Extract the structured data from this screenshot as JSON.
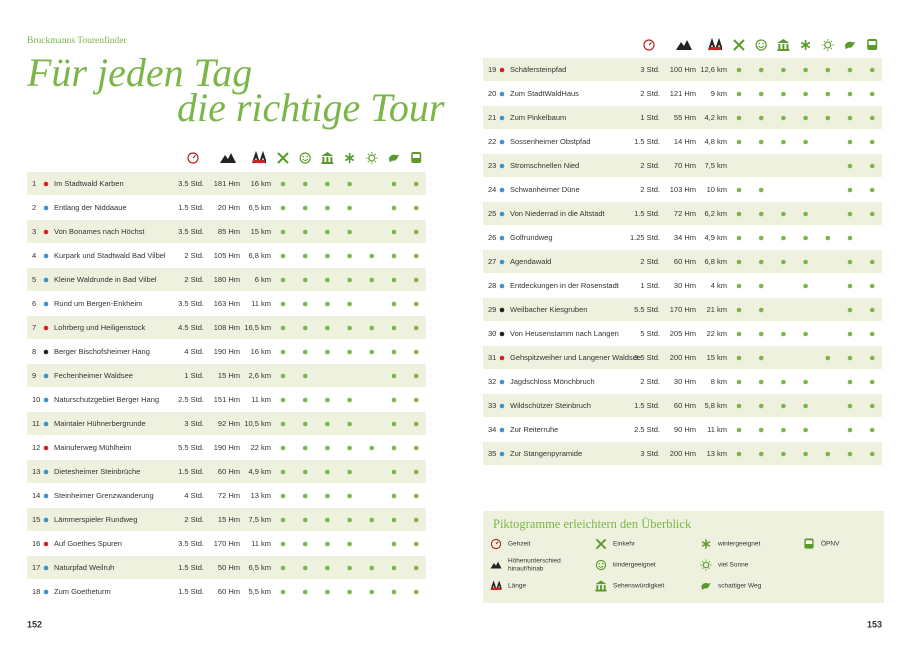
{
  "header": {
    "series": "Bruckmanns Tourenfinder",
    "title_line1": "Für jeden Tag",
    "title_line2": "die richtige Tour"
  },
  "page_left": "152",
  "page_right": "153",
  "tours": [
    {
      "number": "1",
      "name": "Im Stadtwald Karben",
      "time": "3.5 Std.",
      "ascent": "181 Hm",
      "length": "16 km",
      "marker": "#d2232a",
      "features": [
        1,
        1,
        1,
        1,
        0,
        1,
        1
      ]
    },
    {
      "number": "2",
      "name": "Entlang der Niddaaue",
      "time": "1.5 Std.",
      "ascent": "20 Hm",
      "length": "6,5 km",
      "marker": "#3f8fd2",
      "features": [
        1,
        1,
        1,
        1,
        0,
        1,
        1
      ]
    },
    {
      "number": "3",
      "name": "Von Bonames nach Höchst",
      "time": "3.5 Std.",
      "ascent": "85 Hm",
      "length": "15 km",
      "marker": "#d2232a",
      "features": [
        1,
        1,
        1,
        1,
        0,
        1,
        1
      ]
    },
    {
      "number": "4",
      "name": "Kurpark und Stadtwald Bad Vilbel",
      "time": "2 Std.",
      "ascent": "105 Hm",
      "length": "6,8 km",
      "marker": "#3f8fd2",
      "features": [
        1,
        1,
        1,
        1,
        1,
        1,
        1
      ]
    },
    {
      "number": "5",
      "name": "Kleine Waldrunde in Bad Vilbel",
      "time": "2 Std.",
      "ascent": "180 Hm",
      "length": "6 km",
      "marker": "#3f8fd2",
      "features": [
        1,
        1,
        1,
        1,
        1,
        1,
        1
      ]
    },
    {
      "number": "6",
      "name": "Rund um Bergen-Enkheim",
      "time": "3.5 Std.",
      "ascent": "163 Hm",
      "length": "11 km",
      "marker": "#3f8fd2",
      "features": [
        1,
        1,
        1,
        1,
        0,
        1,
        1
      ]
    },
    {
      "number": "7",
      "name": "Lohrberg und Heiligenstock",
      "time": "4.5 Std.",
      "ascent": "108 Hm",
      "length": "16,5 km",
      "marker": "#d2232a",
      "features": [
        1,
        1,
        1,
        1,
        1,
        1,
        1
      ]
    },
    {
      "number": "8",
      "name": "Berger Bischofsheimer Hang",
      "time": "4 Std.",
      "ascent": "190 Hm",
      "length": "16 km",
      "marker": "#222222",
      "features": [
        1,
        1,
        1,
        1,
        1,
        1,
        1
      ]
    },
    {
      "number": "9",
      "name": "Fechenheimer Waldsee",
      "time": "1 Std.",
      "ascent": "15 Hm",
      "length": "2,6 km",
      "marker": "#3f8fd2",
      "features": [
        1,
        1,
        0,
        0,
        0,
        1,
        1
      ]
    },
    {
      "number": "10",
      "name": "Naturschutzgebiet Berger Hang",
      "time": "2.5 Std.",
      "ascent": "151 Hm",
      "length": "11 km",
      "marker": "#3f8fd2",
      "features": [
        1,
        1,
        1,
        1,
        0,
        1,
        1
      ]
    },
    {
      "number": "11",
      "name": "Maintaler Hühnerbergrunde",
      "time": "3 Std.",
      "ascent": "92 Hm",
      "length": "10,5 km",
      "marker": "#3f8fd2",
      "features": [
        1,
        1,
        1,
        1,
        0,
        1,
        1
      ]
    },
    {
      "number": "12",
      "name": "Mainuferweg Mühlheim",
      "time": "5.5 Std.",
      "ascent": "190 Hm",
      "length": "22 km",
      "marker": "#d2232a",
      "features": [
        1,
        1,
        1,
        1,
        1,
        1,
        1
      ]
    },
    {
      "number": "13",
      "name": "Dietesheimer Steinbrüche",
      "time": "1.5 Std.",
      "ascent": "60 Hm",
      "length": "4,9 km",
      "marker": "#3f8fd2",
      "features": [
        1,
        1,
        1,
        1,
        0,
        1,
        1
      ]
    },
    {
      "number": "14",
      "name": "Steinheimer Grenzwanderung",
      "time": "4 Std.",
      "ascent": "72 Hm",
      "length": "13 km",
      "marker": "#3f8fd2",
      "features": [
        1,
        1,
        1,
        1,
        0,
        1,
        1
      ]
    },
    {
      "number": "15",
      "name": "Lämmerspieler Rundweg",
      "time": "2 Std.",
      "ascent": "15 Hm",
      "length": "7,5 km",
      "marker": "#3f8fd2",
      "features": [
        1,
        1,
        1,
        1,
        1,
        1,
        1
      ]
    },
    {
      "number": "16",
      "name": "Auf Goethes Spuren",
      "time": "3.5 Std.",
      "ascent": "170 Hm",
      "length": "11 km",
      "marker": "#d2232a",
      "features": [
        1,
        1,
        1,
        1,
        0,
        1,
        1
      ]
    },
    {
      "number": "17",
      "name": "Naturpfad Weilruh",
      "time": "1.5 Std.",
      "ascent": "50 Hm",
      "length": "6,5 km",
      "marker": "#3f8fd2",
      "features": [
        1,
        1,
        1,
        1,
        1,
        1,
        1
      ]
    },
    {
      "number": "18",
      "name": "Zum Goetheturm",
      "time": "1.5 Std.",
      "ascent": "60 Hm",
      "length": "5,5 km",
      "marker": "#3f8fd2",
      "features": [
        1,
        1,
        1,
        1,
        1,
        1,
        1
      ]
    },
    {
      "number": "19",
      "name": "Schäfersteinpfad",
      "time": "3 Std.",
      "ascent": "100 Hm",
      "length": "12,6 km",
      "marker": "#d2232a",
      "features": [
        1,
        1,
        1,
        1,
        1,
        1,
        1
      ]
    },
    {
      "number": "20",
      "name": "Zum StadtWaldHaus",
      "time": "2 Std.",
      "ascent": "121 Hm",
      "length": "9 km",
      "marker": "#3f8fd2",
      "features": [
        1,
        1,
        1,
        1,
        1,
        1,
        1
      ]
    },
    {
      "number": "21",
      "name": "Zum Pinkelbaum",
      "time": "1 Std.",
      "ascent": "55 Hm",
      "length": "4,2 km",
      "marker": "#3f8fd2",
      "features": [
        1,
        1,
        1,
        1,
        1,
        1,
        1
      ]
    },
    {
      "number": "22",
      "name": "Sossenheimer Obstpfad",
      "time": "1.5 Std.",
      "ascent": "14 Hm",
      "length": "4,8 km",
      "marker": "#3f8fd2",
      "features": [
        1,
        1,
        1,
        1,
        0,
        1,
        1
      ]
    },
    {
      "number": "23",
      "name": "Stromschnellen Nied",
      "time": "2 Std.",
      "ascent": "70 Hm",
      "length": "7,5 km",
      "marker": "#3f8fd2",
      "features": [
        0,
        0,
        0,
        0,
        0,
        1,
        1
      ]
    },
    {
      "number": "24",
      "name": "Schwanheimer Düne",
      "time": "2 Std.",
      "ascent": "103 Hm",
      "length": "10 km",
      "marker": "#3f8fd2",
      "features": [
        1,
        1,
        0,
        0,
        0,
        1,
        1
      ]
    },
    {
      "number": "25",
      "name": "Von Niederrad in die Altstadt",
      "time": "1.5 Std.",
      "ascent": "72 Hm",
      "length": "6,2 km",
      "marker": "#3f8fd2",
      "features": [
        1,
        1,
        1,
        1,
        0,
        1,
        1
      ]
    },
    {
      "number": "26",
      "name": "Golfrundweg",
      "time": "1.25 Std.",
      "ascent": "34 Hm",
      "length": "4,9 km",
      "marker": "#3f8fd2",
      "features": [
        1,
        1,
        1,
        1,
        1,
        1,
        0
      ]
    },
    {
      "number": "27",
      "name": "Agendawald",
      "time": "2 Std.",
      "ascent": "60 Hm",
      "length": "6,8 km",
      "marker": "#3f8fd2",
      "features": [
        1,
        1,
        1,
        1,
        0,
        1,
        1
      ]
    },
    {
      "number": "28",
      "name": "Entdeckungen in der Rosenstadt",
      "time": "1 Std.",
      "ascent": "30 Hm",
      "length": "4 km",
      "marker": "#3f8fd2",
      "features": [
        1,
        1,
        0,
        1,
        0,
        1,
        1
      ]
    },
    {
      "number": "29",
      "name": "Weilbacher Kiesgruben",
      "time": "5.5 Std.",
      "ascent": "170 Hm",
      "length": "21 km",
      "marker": "#222222",
      "features": [
        1,
        1,
        0,
        0,
        0,
        1,
        1
      ]
    },
    {
      "number": "30",
      "name": "Von Heusenstamm nach Langen",
      "time": "5 Std.",
      "ascent": "205 Hm",
      "length": "22 km",
      "marker": "#222222",
      "features": [
        1,
        1,
        1,
        1,
        0,
        1,
        1
      ]
    },
    {
      "number": "31",
      "name": "Gehspitzweiher und Langener Waldsee",
      "time": "3.5 Std.",
      "ascent": "200 Hm",
      "length": "15 km",
      "marker": "#d2232a",
      "features": [
        1,
        1,
        0,
        0,
        1,
        1,
        1
      ]
    },
    {
      "number": "32",
      "name": "Jagdschloss Mönchbruch",
      "time": "2 Std.",
      "ascent": "30 Hm",
      "length": "8 km",
      "marker": "#3f8fd2",
      "features": [
        1,
        1,
        1,
        1,
        0,
        1,
        1
      ]
    },
    {
      "number": "33",
      "name": "Wildschützer Steinbruch",
      "time": "1.5 Std.",
      "ascent": "60 Hm",
      "length": "5,8 km",
      "marker": "#3f8fd2",
      "features": [
        1,
        1,
        1,
        1,
        0,
        1,
        1
      ]
    },
    {
      "number": "34",
      "name": "Zur Reiterruhe",
      "time": "2.5 Std.",
      "ascent": "90 Hm",
      "length": "11 km",
      "marker": "#3f8fd2",
      "features": [
        1,
        1,
        1,
        1,
        0,
        1,
        1
      ]
    },
    {
      "number": "35",
      "name": "Zur Stangenpyramide",
      "time": "3 Std.",
      "ascent": "200 Hm",
      "length": "13 km",
      "marker": "#3f8fd2",
      "features": [
        1,
        1,
        1,
        1,
        1,
        1,
        1
      ]
    }
  ],
  "legend": {
    "title": "Piktogramme erleichtern den Überblick",
    "items": [
      {
        "lines": [
          "Gehzeit"
        ]
      },
      {
        "lines": [
          "Höhenunterschied",
          "hinauf/hinab"
        ]
      },
      {
        "lines": [
          "Länge"
        ]
      },
      {
        "lines": [
          "Einkehr"
        ]
      },
      {
        "lines": [
          "kindergeeignet"
        ]
      },
      {
        "lines": [
          "Sehenswürdigkeit"
        ]
      },
      {
        "lines": [
          "wintergeeignet"
        ]
      },
      {
        "lines": [
          "viel Sonne"
        ]
      },
      {
        "lines": [
          "schattiger Weg"
        ]
      },
      {
        "lines": [
          "ÖPNV"
        ]
      }
    ]
  }
}
